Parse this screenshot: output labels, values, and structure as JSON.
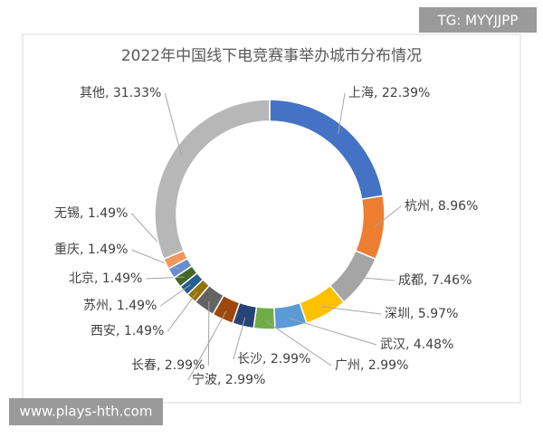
{
  "chart_data": {
    "type": "donut",
    "title": "2022年中国线下电竞赛事举办城市分布情况",
    "values": [
      22.39,
      8.96,
      7.46,
      5.97,
      4.48,
      2.99,
      2.99,
      2.99,
      2.99,
      1.49,
      1.49,
      1.49,
      1.49,
      1.49,
      31.33
    ],
    "value_labels": [
      "上海, 22.39%",
      "杭州, 8.96%",
      "成都, 7.46%",
      "深圳, 5.97%",
      "武汉, 4.48%",
      "广州, 2.99%",
      "长沙, 2.99%",
      "宁波, 2.99%",
      "长春, 2.99%",
      "西安, 1.49%",
      "苏州, 1.49%",
      "北京, 1.49%",
      "重庆, 1.49%",
      "无锡, 1.49%",
      "其他, 31.33%"
    ],
    "colors": [
      "#4472c4",
      "#ed7d31",
      "#a5a5a5",
      "#ffc000",
      "#5b9bd5",
      "#70ad47",
      "#264478",
      "#9e480e",
      "#636363",
      "#997300",
      "#255e91",
      "#43682b",
      "#698ed0",
      "#f1975a",
      "#b7b7b7"
    ]
  },
  "watermarks": {
    "top_right": "TG: MYYJJPP",
    "bottom_left": "www.plays-hth.com"
  }
}
